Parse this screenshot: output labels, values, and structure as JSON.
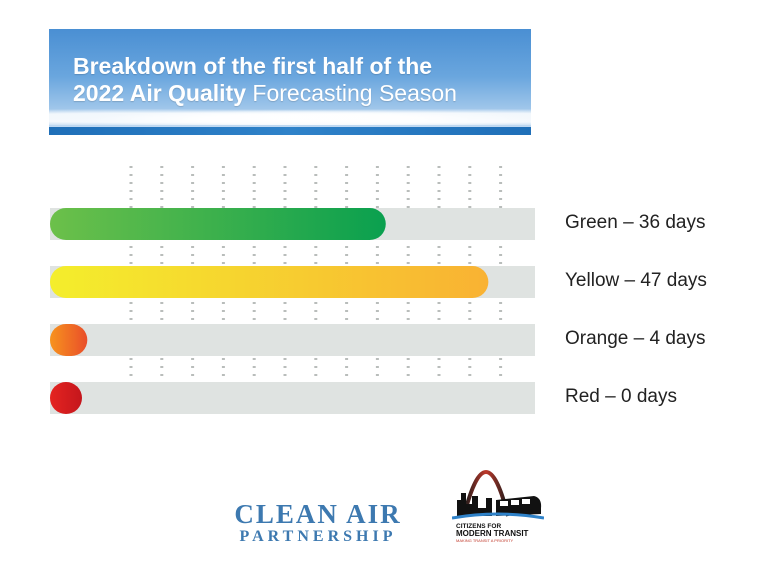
{
  "banner": {
    "line1": "Breakdown of the first half of the",
    "line2_bold": "2022 Air Quality",
    "line2_rest": " Forecasting Season"
  },
  "colors": {
    "track": "#dfe3e1",
    "green": [
      "#6cc04a",
      "#0aa04f"
    ],
    "yellow": [
      "#f4ee2c",
      "#f9b233"
    ],
    "orange": [
      "#f7931e",
      "#e94e2a"
    ],
    "red": [
      "#e52421",
      "#c4161c"
    ]
  },
  "chart_data": {
    "type": "bar",
    "orientation": "horizontal",
    "categories": [
      "Green",
      "Yellow",
      "Orange",
      "Red"
    ],
    "values": [
      36,
      47,
      4,
      0
    ],
    "labels": [
      "Green – 36 days",
      "Yellow – 47 days",
      "Orange – 4 days",
      "Red – 0 days"
    ],
    "xlim": [
      0,
      52
    ],
    "grid": true,
    "legend": "right"
  },
  "logos": {
    "clean_air_line1": "CLEAN AIR",
    "clean_air_line2": "PARTNERSHIP",
    "cmt_line1": "CITIZENS FOR",
    "cmt_line2": "MODERN TRANSIT",
    "cmt_tagline": "MAKING TRANSIT A PRIORITY"
  }
}
